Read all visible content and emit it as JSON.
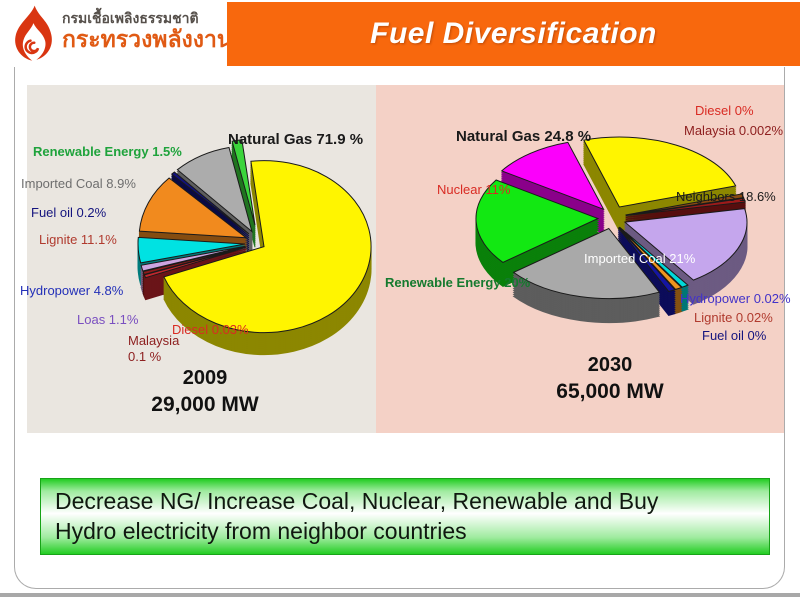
{
  "header": {
    "org_name_line1": "กรมเชื้อเพลิงธรรมชาติ",
    "org_name_line2": "กระทรวงพลังงาน",
    "title": "Fuel Diversification"
  },
  "colors": {
    "banner_orange": "#F8680D",
    "left_panel_bg": "#EAE6E0",
    "right_panel_bg": "#F4D1C6",
    "footer_green": "#23CD23"
  },
  "left_panel": {
    "year": "2009",
    "capacity": "29,000 MW",
    "labels": [
      {
        "text": "Natural Gas 71.9 %"
      },
      {
        "text": "Renewable Energy 1.5%"
      },
      {
        "text": "Imported Coal 8.9%"
      },
      {
        "text": "Fuel oil 0.2%"
      },
      {
        "text": "Lignite 11.1%"
      },
      {
        "text": "Hydropower 4.8%"
      },
      {
        "text": "Loas 1.1%"
      },
      {
        "text": "Malaysia 0.1 %"
      },
      {
        "text": "Diesel  0.03%"
      }
    ]
  },
  "right_panel": {
    "year": "2030",
    "capacity": "65,000 MW",
    "labels": [
      {
        "text": "Diesel  0%"
      },
      {
        "text": "Malaysia 0.002%"
      },
      {
        "text": "Natural Gas 24.8 %"
      },
      {
        "text": "Nuclear  11%"
      },
      {
        "text": "Neighbors 18.6%"
      },
      {
        "text": "Renewable Energy 20%"
      },
      {
        "text": "Imported Coal 21%"
      },
      {
        "text": "Hydropower 0.02%"
      },
      {
        "text": "Lignite 0.02%"
      },
      {
        "text": "Fuel oil 0%"
      }
    ]
  },
  "chart_data": [
    {
      "type": "pie",
      "title": "2009",
      "subtitle": "29,000 MW",
      "style": "3d-exploded",
      "slices": [
        {
          "label": "Natural Gas",
          "value": 71.9,
          "color": "#FFF500"
        },
        {
          "label": "Diesel",
          "value": 0.03,
          "color": "#C1272D"
        },
        {
          "label": "Malaysia",
          "value": 0.1,
          "color": "#8E1B1B"
        },
        {
          "label": "Loas",
          "value": 1.1,
          "color": "#CDA5E0"
        },
        {
          "label": "Hydropower",
          "value": 4.8,
          "color": "#00E2E2"
        },
        {
          "label": "Lignite",
          "value": 11.1,
          "color": "#F18A1E"
        },
        {
          "label": "Fuel oil",
          "value": 0.2,
          "color": "#12127D"
        },
        {
          "label": "Imported Coal",
          "value": 8.9,
          "color": "#ACACAC"
        },
        {
          "label": "Renewable Energy",
          "value": 1.5,
          "color": "#3BD43B"
        }
      ]
    },
    {
      "type": "pie",
      "title": "2030",
      "subtitle": "65,000 MW",
      "style": "3d-exploded",
      "slices": [
        {
          "label": "Natural Gas",
          "value": 24.8,
          "color": "#FFF500"
        },
        {
          "label": "Diesel",
          "value": 0,
          "color": "#8A4A12"
        },
        {
          "label": "Malaysia",
          "value": 0.002,
          "color": "#9E1A1A"
        },
        {
          "label": "Neighbors",
          "value": 18.6,
          "color": "#C5A6ED"
        },
        {
          "label": "Hydropower",
          "value": 0.02,
          "color": "#00D9D9"
        },
        {
          "label": "Lignite",
          "value": 0.02,
          "color": "#F0941E"
        },
        {
          "label": "Fuel oil",
          "value": 0,
          "color": "#1515A3"
        },
        {
          "label": "Imported Coal",
          "value": 21,
          "color": "#A9A9A9"
        },
        {
          "label": "Renewable Energy",
          "value": 20,
          "color": "#12E812"
        },
        {
          "label": "Nuclear",
          "value": 11,
          "color": "#FB00FB"
        }
      ]
    }
  ],
  "footer": {
    "line1": "Decrease NG/ Increase Coal, Nuclear, Renewable and Buy",
    "line2": "Hydro electricity from neighbor countries"
  }
}
